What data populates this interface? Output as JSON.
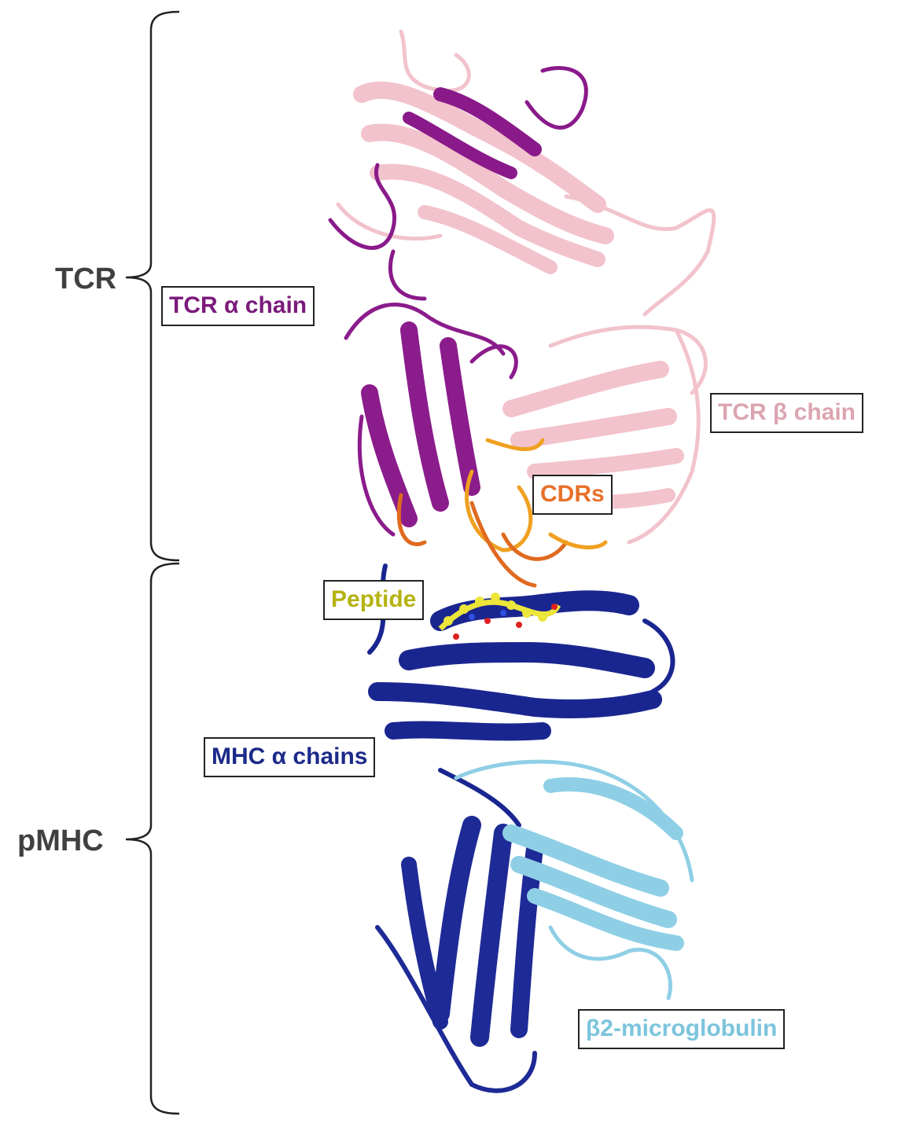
{
  "groups": {
    "tcr": "TCR",
    "pmhc": "pMHC"
  },
  "labels": {
    "tcr_alpha": "TCR α chain",
    "tcr_beta": "TCR β chain",
    "cdrs": "CDRs",
    "peptide": "Peptide",
    "mhc_alpha": "MHC α chains",
    "b2m": "β2-microglobulin"
  },
  "colors": {
    "tcr_alpha": "#7b1a7b",
    "tcr_beta": "#dba5b0",
    "cdrs": "#e8702a",
    "peptide": "#b5b312",
    "mhc_alpha": "#1c2a8a",
    "b2m": "#7cc4dd",
    "group_text": "#404040"
  }
}
